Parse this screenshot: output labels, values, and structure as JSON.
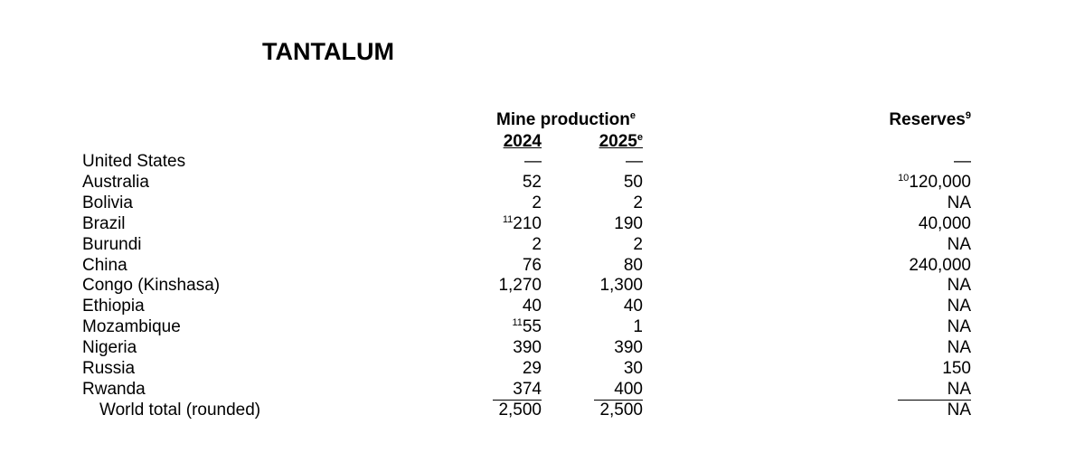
{
  "header": {
    "title": "TANTALUM",
    "group": {
      "text": "Mine production",
      "note": "e"
    },
    "years": [
      {
        "text": "2024"
      },
      {
        "text": "2025",
        "note": "e"
      }
    ],
    "reserves": {
      "text": "Reserves",
      "note": "9"
    }
  },
  "table": {
    "rows": [
      [
        "United States",
        "—",
        "—",
        "—"
      ],
      [
        "Australia",
        "52",
        "50",
        {
          "note": "10",
          "text": "120,000"
        }
      ],
      [
        "Bolivia",
        "2",
        "2",
        "NA"
      ],
      [
        "Brazil",
        {
          "note": "11",
          "text": "210"
        },
        "190",
        "40,000"
      ],
      [
        "Burundi",
        "2",
        "2",
        "NA"
      ],
      [
        "China",
        "76",
        "80",
        "240,000"
      ],
      [
        "Congo (Kinshasa)",
        "1,270",
        "1,300",
        "NA"
      ],
      [
        "Ethiopia",
        "40",
        "40",
        "NA"
      ],
      [
        "Mozambique",
        {
          "note": "11",
          "text": "55"
        },
        "1",
        "NA"
      ],
      [
        "Nigeria",
        "390",
        "390",
        "NA"
      ],
      [
        "Russia",
        "29",
        "30",
        "150"
      ],
      [
        "Rwanda",
        "374",
        "400",
        "NA"
      ],
      [
        "World total (rounded)",
        "2,500",
        "2,500",
        "NA"
      ]
    ]
  }
}
